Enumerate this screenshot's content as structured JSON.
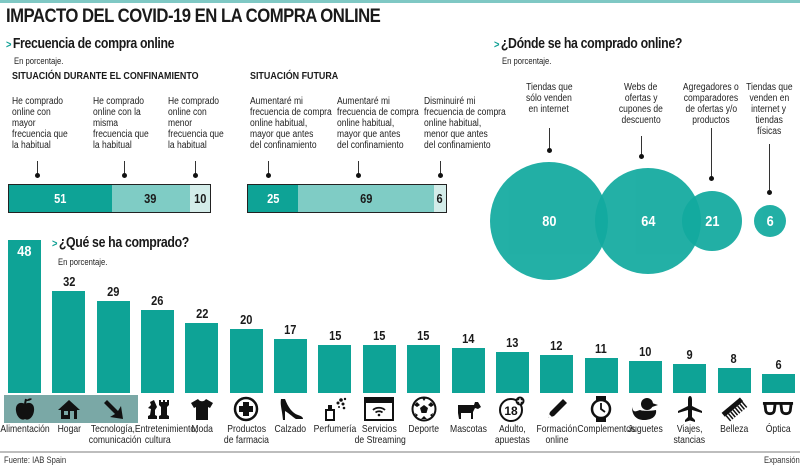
{
  "title": "IMPACTO DEL COVID-19 EN LA COMPRA ONLINE",
  "colors": {
    "dark_teal": "#0ea396",
    "mid_teal": "#7fccc5",
    "light_teal": "#d3ece9",
    "bubble": "#12aa9f",
    "highlight": "#7aa8a6"
  },
  "frequency": {
    "title": "Frecuencia de compra online",
    "unit": "En porcentaje.",
    "during": {
      "caption": "SITUACIÓN DURANTE EL CONFINAMIENTO",
      "segments": [
        {
          "label": "He comprado online con mayor frecuencia que la habitual",
          "lines": [
            "He comprado",
            "online con",
            "mayor",
            "frecuencia que",
            "la habitual"
          ],
          "value": 51
        },
        {
          "label": "He comprado online con la misma frecuencia que la habitual",
          "lines": [
            "He comprado",
            "online con la",
            "misma",
            "frecuencia que",
            "la habitual"
          ],
          "value": 39
        },
        {
          "label": "He comprado online con menor frecuencia que la habitual",
          "lines": [
            "He comprado",
            "online con",
            "menor",
            "frecuencia que",
            "la habitual"
          ],
          "value": 10
        }
      ]
    },
    "future": {
      "caption": "SITUACIÓN FUTURA",
      "segments": [
        {
          "label": "Aumentaré mi frecuencia de compra online habitual, mayor que antes del confinamiento",
          "lines": [
            "Aumentaré mi",
            "frecuencia de compra",
            "online habitual,",
            "mayor que antes",
            "del confinamiento"
          ],
          "value": 25
        },
        {
          "label": "Aumentaré mi frecuencia de compra online habitual, mayor que antes del confinamiento",
          "lines": [
            "Aumentaré mi",
            "frecuencia de compra",
            "online habitual,",
            "mayor que antes",
            "del confinamiento"
          ],
          "value": 69
        },
        {
          "label": "Disminuiré mi frecuencia de compra online habitual, menor que antes del confinamiento",
          "lines": [
            "Disminuiré mi",
            "frecuencia de compra",
            "online habitual,",
            "menor que antes",
            "del confinamiento"
          ],
          "value": 6
        }
      ]
    }
  },
  "where": {
    "title": "¿Dónde se ha comprado online?",
    "unit": "En porcentaje.",
    "items": [
      {
        "lines": [
          "Tiendas que",
          "sólo venden",
          "en internet"
        ],
        "value": 80
      },
      {
        "lines": [
          "Webs de",
          "ofertas y",
          "cupones de",
          "descuento"
        ],
        "value": 64
      },
      {
        "lines": [
          "Agregadores o",
          "comparadores",
          "de ofertas y/o",
          "productos"
        ],
        "value": 21
      },
      {
        "lines": [
          "Tiendas que",
          "venden en",
          "internet y",
          "tiendas",
          "físicas"
        ],
        "value": 6
      }
    ]
  },
  "what": {
    "title": "¿Qué se ha comprado?",
    "unit": "En porcentaje."
  },
  "chart_data": [
    {
      "type": "bar",
      "title": "Frecuencia de compra online — Situación durante el confinamiento",
      "stacked": true,
      "categories": [
        "Mayor frecuencia que la habitual",
        "Misma frecuencia que la habitual",
        "Menor frecuencia que la habitual"
      ],
      "values": [
        51,
        39,
        10
      ],
      "unit": "%"
    },
    {
      "type": "bar",
      "title": "Frecuencia de compra online — Situación futura",
      "stacked": true,
      "categories": [
        "Aumentaré (mayor que antes)",
        "Aumentaré (mayor que antes)",
        "Disminuiré (menor que antes)"
      ],
      "values": [
        25,
        69,
        6
      ],
      "unit": "%"
    },
    {
      "type": "scatter",
      "title": "¿Dónde se ha comprado online?",
      "categories": [
        "Tiendas que sólo venden en internet",
        "Webs de ofertas y cupones de descuento",
        "Agregadores o comparadores de ofertas y/o productos",
        "Tiendas que venden en internet y tiendas físicas"
      ],
      "values": [
        80,
        64,
        21,
        6
      ],
      "unit": "%"
    },
    {
      "type": "bar",
      "title": "¿Qué se ha comprado?",
      "xlabel": "",
      "ylabel": "En porcentaje",
      "ylim": [
        0,
        48
      ],
      "categories": [
        "Alimentación",
        "Hogar",
        "Tecnología, comunicación",
        "Entretenimiento, cultura",
        "Moda",
        "Productos de farmacia",
        "Calzado",
        "Perfumería",
        "Servicios de Streaming",
        "Deporte",
        "Mascotas",
        "Adulto, apuestas",
        "Formación online",
        "Complementos",
        "Juguetes",
        "Viajes, stancias",
        "Belleza",
        "Óptica"
      ],
      "values": [
        48,
        32,
        29,
        26,
        22,
        20,
        17,
        15,
        15,
        15,
        14,
        13,
        12,
        11,
        10,
        9,
        8,
        6
      ],
      "category_lines": [
        [
          "Alimentación"
        ],
        [
          "Hogar"
        ],
        [
          "Tecnología,",
          "comunicación"
        ],
        [
          "Entretenimiento,",
          "cultura"
        ],
        [
          "Moda"
        ],
        [
          "Productos",
          "de farmacia"
        ],
        [
          "Calzado"
        ],
        [
          "Perfumería"
        ],
        [
          "Servicios",
          "de Streaming"
        ],
        [
          "Deporte"
        ],
        [
          "Mascotas"
        ],
        [
          "Adulto,",
          "apuestas"
        ],
        [
          "Formación",
          "online"
        ],
        [
          "Complementos"
        ],
        [
          "Juguetes"
        ],
        [
          "Viajes,",
          "stancias"
        ],
        [
          "Belleza"
        ],
        [
          "Óptica"
        ]
      ],
      "icons": [
        "apple-icon",
        "house-icon",
        "arrow-down-right-icon",
        "chess-icon",
        "tshirt-icon",
        "medical-cross-icon",
        "high-heel-icon",
        "perfume-icon",
        "streaming-window-icon",
        "soccer-ball-icon",
        "dog-icon",
        "adult-18-icon",
        "pencil-icon",
        "watch-icon",
        "rubber-duck-icon",
        "airplane-icon",
        "comb-icon",
        "glasses-icon"
      ],
      "highlighted": [
        "Alimentación",
        "Hogar",
        "Tecnología, comunicación"
      ]
    }
  ],
  "footer": {
    "source": "Fuente: IAB Spain",
    "brand": "Expansión"
  }
}
